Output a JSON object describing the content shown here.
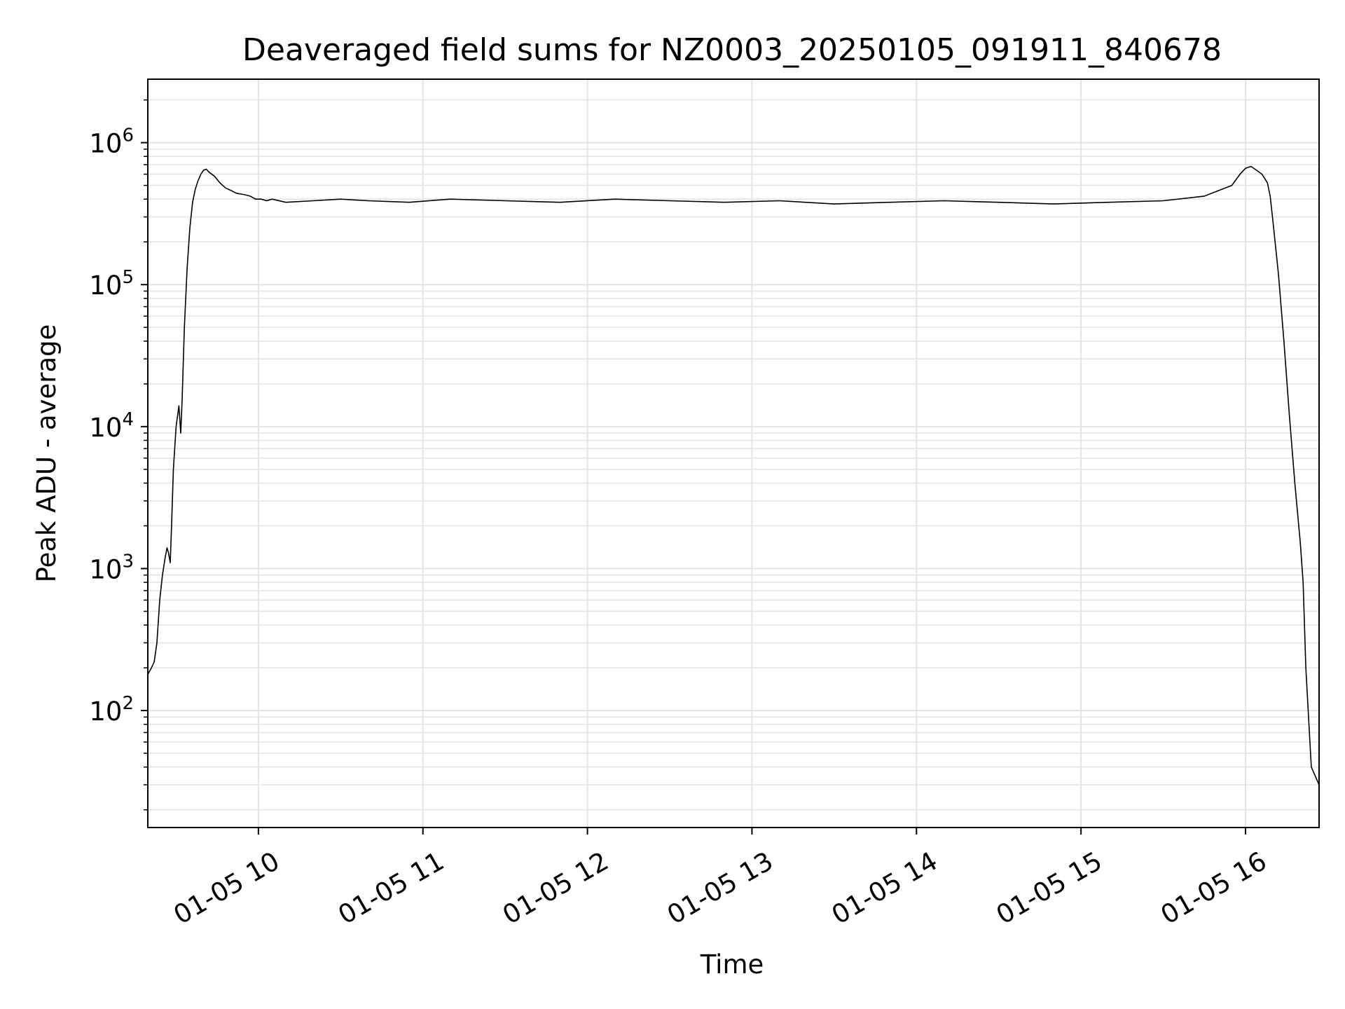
{
  "chart_data": {
    "type": "line",
    "title": "Deaveraged field sums for NZ0003_20250105_091911_840678",
    "xlabel": "Time",
    "ylabel": "Peak ADU - average",
    "yscale": "log",
    "grid": true,
    "legend": "none",
    "line_color": "#000000",
    "xlim": [
      "2025-01-05 09:19:40",
      "2025-01-05 16:26:50"
    ],
    "ylim": [
      15,
      2800000
    ],
    "x_ticks": [
      {
        "value": "2025-01-05 10:00",
        "label": "01-05 10"
      },
      {
        "value": "2025-01-05 11:00",
        "label": "01-05 11"
      },
      {
        "value": "2025-01-05 12:00",
        "label": "01-05 12"
      },
      {
        "value": "2025-01-05 13:00",
        "label": "01-05 13"
      },
      {
        "value": "2025-01-05 14:00",
        "label": "01-05 14"
      },
      {
        "value": "2025-01-05 15:00",
        "label": "01-05 15"
      },
      {
        "value": "2025-01-05 16:00",
        "label": "01-05 16"
      }
    ],
    "y_ticks": [
      {
        "value": 100,
        "base": "10",
        "exp": "2"
      },
      {
        "value": 1000,
        "base": "10",
        "exp": "3"
      },
      {
        "value": 10000,
        "base": "10",
        "exp": "4"
      },
      {
        "value": 100000,
        "base": "10",
        "exp": "5"
      },
      {
        "value": 1000000,
        "base": "10",
        "exp": "6"
      }
    ],
    "series": [
      {
        "x": [
          "2025-01-05 09:19:40",
          "2025-01-05 09:21:00",
          "2025-01-05 09:22:00",
          "2025-01-05 09:23:00",
          "2025-01-05 09:24:00",
          "2025-01-05 09:25:00",
          "2025-01-05 09:26:00",
          "2025-01-05 09:26:40",
          "2025-01-05 09:27:10",
          "2025-01-05 09:27:50",
          "2025-01-05 09:28:20",
          "2025-01-05 09:29:00",
          "2025-01-05 09:30:00",
          "2025-01-05 09:31:00",
          "2025-01-05 09:31:40",
          "2025-01-05 09:32:10",
          "2025-01-05 09:33:00",
          "2025-01-05 09:34:00",
          "2025-01-05 09:35:00",
          "2025-01-05 09:36:00",
          "2025-01-05 09:37:00",
          "2025-01-05 09:38:00",
          "2025-01-05 09:39:00",
          "2025-01-05 09:40:00",
          "2025-01-05 09:41:00",
          "2025-01-05 09:42:00",
          "2025-01-05 09:44:00",
          "2025-01-05 09:46:00",
          "2025-01-05 09:48:00",
          "2025-01-05 09:50:00",
          "2025-01-05 09:52:00",
          "2025-01-05 09:55:00",
          "2025-01-05 09:57:00",
          "2025-01-05 09:58:00",
          "2025-01-05 09:59:00",
          "2025-01-05 10:01:00",
          "2025-01-05 10:03:00",
          "2025-01-05 10:05:00",
          "2025-01-05 10:10:00",
          "2025-01-05 10:20:00",
          "2025-01-05 10:30:00",
          "2025-01-05 10:40:00",
          "2025-01-05 10:55:00",
          "2025-01-05 11:10:00",
          "2025-01-05 11:30:00",
          "2025-01-05 11:50:00",
          "2025-01-05 12:10:00",
          "2025-01-05 12:30:00",
          "2025-01-05 12:50:00",
          "2025-01-05 13:10:00",
          "2025-01-05 13:30:00",
          "2025-01-05 13:50:00",
          "2025-01-05 14:10:00",
          "2025-01-05 14:30:00",
          "2025-01-05 14:50:00",
          "2025-01-05 15:10:00",
          "2025-01-05 15:30:00",
          "2025-01-05 15:45:00",
          "2025-01-05 15:55:00",
          "2025-01-05 15:58:00",
          "2025-01-05 16:00:00",
          "2025-01-05 16:02:00",
          "2025-01-05 16:04:00",
          "2025-01-05 16:06:00",
          "2025-01-05 16:08:00",
          "2025-01-05 16:09:00",
          "2025-01-05 16:10:00",
          "2025-01-05 16:12:00",
          "2025-01-05 16:14:00",
          "2025-01-05 16:16:00",
          "2025-01-05 16:18:00",
          "2025-01-05 16:20:00",
          "2025-01-05 16:21:00",
          "2025-01-05 16:22:00",
          "2025-01-05 16:24:00",
          "2025-01-05 16:26:50"
        ],
        "y": [
          180,
          200,
          220,
          300,
          600,
          900,
          1200,
          1400,
          1300,
          1100,
          2000,
          5000,
          10000,
          14000,
          9000,
          15000,
          50000,
          130000,
          250000,
          380000,
          470000,
          540000,
          600000,
          640000,
          650000,
          620000,
          580000,
          520000,
          480000,
          460000,
          440000,
          430000,
          420000,
          410000,
          400000,
          400000,
          390000,
          400000,
          380000,
          390000,
          400000,
          390000,
          380000,
          400000,
          390000,
          380000,
          400000,
          390000,
          380000,
          390000,
          370000,
          380000,
          390000,
          380000,
          370000,
          380000,
          390000,
          420000,
          500000,
          600000,
          660000,
          680000,
          640000,
          600000,
          520000,
          420000,
          280000,
          120000,
          40000,
          12000,
          4000,
          1500,
          800,
          200,
          40,
          30
        ]
      }
    ],
    "annotations": []
  }
}
